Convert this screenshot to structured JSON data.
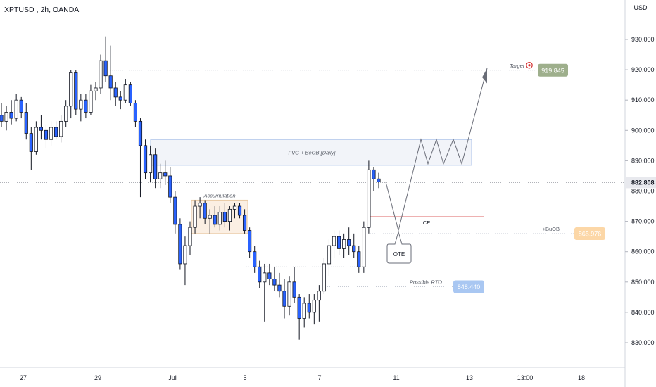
{
  "header": {
    "symbol": "XPTUSD",
    "interval": "2h",
    "exchange": "OANDA"
  },
  "colors": {
    "up_body": "#ffffff",
    "down_body": "#2962ff",
    "wick": "#131722",
    "grid_line": "#e0e3eb",
    "red_line": "#d32f2f",
    "fvg_fill": "#f2f4f9",
    "fvg_border": "#aec4ea",
    "accum_fill": "#fbefe3",
    "accum_border": "#e9c9a4",
    "target_badge": "#9eaf8c",
    "buob_badge": "#fcd7a7",
    "rto_badge": "#a9c7f2",
    "price_badge": "#e8e9ee"
  },
  "chart_data": {
    "type": "candlestick",
    "title": "XPTUSD, 2h, OANDA",
    "currency": "USD",
    "ylim": [
      822,
      937
    ],
    "y_ticks": [
      "930.000",
      "920.000",
      "910.000",
      "900.000",
      "890.000",
      "880.000",
      "870.000",
      "860.000",
      "850.000",
      "840.000",
      "830.000"
    ],
    "x_ticks": [
      "27",
      "29",
      "Jul",
      "5",
      "7",
      "11",
      "13",
      "13:00",
      "18"
    ],
    "last_price": "882.808",
    "candles": [
      {
        "o": 905,
        "h": 909,
        "l": 901,
        "c": 903
      },
      {
        "o": 903,
        "h": 908,
        "l": 900,
        "c": 906
      },
      {
        "o": 906,
        "h": 910,
        "l": 902,
        "c": 904
      },
      {
        "o": 904,
        "h": 912,
        "l": 903,
        "c": 910
      },
      {
        "o": 910,
        "h": 911,
        "l": 904,
        "c": 906
      },
      {
        "o": 906,
        "h": 909,
        "l": 897,
        "c": 899
      },
      {
        "o": 899,
        "h": 901,
        "l": 887,
        "c": 893
      },
      {
        "o": 893,
        "h": 903,
        "l": 892,
        "c": 901
      },
      {
        "o": 901,
        "h": 905,
        "l": 897,
        "c": 900
      },
      {
        "o": 900,
        "h": 902,
        "l": 894,
        "c": 897
      },
      {
        "o": 897,
        "h": 903,
        "l": 895,
        "c": 901
      },
      {
        "o": 901,
        "h": 903,
        "l": 897,
        "c": 898
      },
      {
        "o": 898,
        "h": 905,
        "l": 896,
        "c": 903
      },
      {
        "o": 903,
        "h": 910,
        "l": 901,
        "c": 908
      },
      {
        "o": 908,
        "h": 920,
        "l": 904,
        "c": 919
      },
      {
        "o": 919,
        "h": 920,
        "l": 905,
        "c": 907
      },
      {
        "o": 907,
        "h": 912,
        "l": 903,
        "c": 910
      },
      {
        "o": 910,
        "h": 912,
        "l": 904,
        "c": 906
      },
      {
        "o": 906,
        "h": 915,
        "l": 905,
        "c": 913
      },
      {
        "o": 913,
        "h": 916,
        "l": 910,
        "c": 914
      },
      {
        "o": 914,
        "h": 925,
        "l": 912,
        "c": 923
      },
      {
        "o": 923,
        "h": 931,
        "l": 916,
        "c": 918
      },
      {
        "o": 918,
        "h": 928,
        "l": 910,
        "c": 914
      },
      {
        "o": 914,
        "h": 916,
        "l": 908,
        "c": 911
      },
      {
        "o": 911,
        "h": 913,
        "l": 907,
        "c": 910
      },
      {
        "o": 910,
        "h": 917,
        "l": 909,
        "c": 915
      },
      {
        "o": 915,
        "h": 916,
        "l": 908,
        "c": 909
      },
      {
        "o": 909,
        "h": 910,
        "l": 901,
        "c": 903
      },
      {
        "o": 903,
        "h": 904,
        "l": 878,
        "c": 895
      },
      {
        "o": 895,
        "h": 897,
        "l": 884,
        "c": 886
      },
      {
        "o": 886,
        "h": 895,
        "l": 883,
        "c": 892
      },
      {
        "o": 892,
        "h": 894,
        "l": 881,
        "c": 884
      },
      {
        "o": 884,
        "h": 889,
        "l": 881,
        "c": 886
      },
      {
        "o": 886,
        "h": 890,
        "l": 882,
        "c": 885
      },
      {
        "o": 885,
        "h": 888,
        "l": 876,
        "c": 878
      },
      {
        "o": 878,
        "h": 880,
        "l": 866,
        "c": 869
      },
      {
        "o": 869,
        "h": 871,
        "l": 854,
        "c": 856
      },
      {
        "o": 856,
        "h": 865,
        "l": 849,
        "c": 862
      },
      {
        "o": 862,
        "h": 870,
        "l": 859,
        "c": 868
      },
      {
        "o": 868,
        "h": 877,
        "l": 866,
        "c": 875
      },
      {
        "o": 875,
        "h": 878,
        "l": 871,
        "c": 876
      },
      {
        "o": 876,
        "h": 877,
        "l": 869,
        "c": 871
      },
      {
        "o": 871,
        "h": 874,
        "l": 866,
        "c": 872
      },
      {
        "o": 872,
        "h": 875,
        "l": 868,
        "c": 869
      },
      {
        "o": 869,
        "h": 875,
        "l": 867,
        "c": 873
      },
      {
        "o": 873,
        "h": 876,
        "l": 868,
        "c": 870
      },
      {
        "o": 870,
        "h": 875,
        "l": 867,
        "c": 874
      },
      {
        "o": 874,
        "h": 876,
        "l": 871,
        "c": 875
      },
      {
        "o": 875,
        "h": 876,
        "l": 871,
        "c": 872
      },
      {
        "o": 872,
        "h": 874,
        "l": 866,
        "c": 867
      },
      {
        "o": 867,
        "h": 868,
        "l": 858,
        "c": 860
      },
      {
        "o": 860,
        "h": 862,
        "l": 853,
        "c": 855
      },
      {
        "o": 855,
        "h": 857,
        "l": 848,
        "c": 850
      },
      {
        "o": 850,
        "h": 856,
        "l": 837,
        "c": 853
      },
      {
        "o": 853,
        "h": 856,
        "l": 849,
        "c": 851
      },
      {
        "o": 851,
        "h": 855,
        "l": 847,
        "c": 849
      },
      {
        "o": 849,
        "h": 853,
        "l": 845,
        "c": 847
      },
      {
        "o": 847,
        "h": 851,
        "l": 838,
        "c": 842
      },
      {
        "o": 842,
        "h": 852,
        "l": 839,
        "c": 850
      },
      {
        "o": 850,
        "h": 855,
        "l": 843,
        "c": 845
      },
      {
        "o": 845,
        "h": 846,
        "l": 831,
        "c": 838
      },
      {
        "o": 838,
        "h": 845,
        "l": 835,
        "c": 843
      },
      {
        "o": 843,
        "h": 846,
        "l": 838,
        "c": 840
      },
      {
        "o": 840,
        "h": 846,
        "l": 836,
        "c": 844
      },
      {
        "o": 844,
        "h": 849,
        "l": 837,
        "c": 847
      },
      {
        "o": 847,
        "h": 858,
        "l": 846,
        "c": 856
      },
      {
        "o": 856,
        "h": 864,
        "l": 852,
        "c": 862
      },
      {
        "o": 862,
        "h": 867,
        "l": 858,
        "c": 865
      },
      {
        "o": 865,
        "h": 867,
        "l": 859,
        "c": 861
      },
      {
        "o": 861,
        "h": 866,
        "l": 858,
        "c": 864
      },
      {
        "o": 864,
        "h": 868,
        "l": 859,
        "c": 862
      },
      {
        "o": 862,
        "h": 866,
        "l": 858,
        "c": 860
      },
      {
        "o": 860,
        "h": 862,
        "l": 853,
        "c": 855
      },
      {
        "o": 855,
        "h": 870,
        "l": 853,
        "c": 868
      },
      {
        "o": 868,
        "h": 890,
        "l": 866,
        "c": 887
      },
      {
        "o": 887,
        "h": 888,
        "l": 880,
        "c": 884
      },
      {
        "o": 884,
        "h": 886,
        "l": 881,
        "c": 883
      }
    ],
    "levels": [
      {
        "name": "Target",
        "value": "919.845",
        "y": 919.845
      },
      {
        "name": "+BuOB",
        "value": "865.976",
        "y": 865.976
      },
      {
        "name": "Possible RTO",
        "value": "848.440",
        "y": 848.44
      }
    ],
    "zones": [
      {
        "label": "FVG + BeOB [Daily]",
        "y_low": 888.5,
        "y_high": 897
      },
      {
        "label": "Accumulation",
        "y_low": 866,
        "y_high": 877
      }
    ],
    "annotations": [
      "CE",
      "OTE"
    ]
  }
}
